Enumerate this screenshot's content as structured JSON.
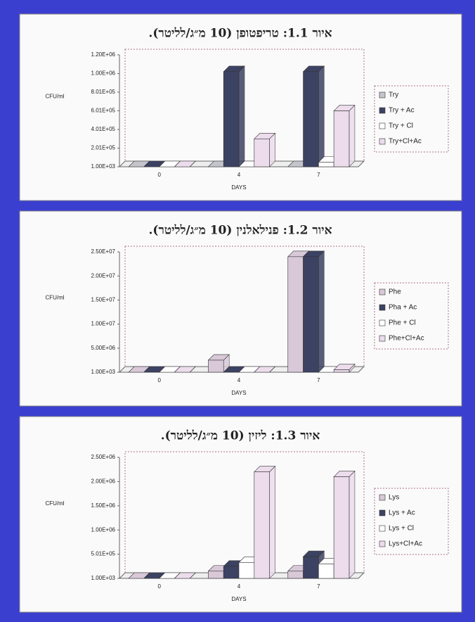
{
  "chart_data": [
    {
      "type": "bar",
      "title": "איור 1.1: טריפטופן (10 מ״ג/לליטר).",
      "y_label": "CFU/ml",
      "x_label": "DAYS",
      "categories": [
        "0",
        "4",
        "7"
      ],
      "ylim": [
        1000,
        1200000
      ],
      "yticks": [
        {
          "value": 1000,
          "label": "1.00E+03"
        },
        {
          "value": 201000,
          "label": "2.01E+05"
        },
        {
          "value": 401000,
          "label": "4.01E+05"
        },
        {
          "value": 601000,
          "label": "6.01E+05"
        },
        {
          "value": 801000,
          "label": "8.01E+05"
        },
        {
          "value": 1000000,
          "label": "1.00E+06"
        },
        {
          "value": 1200000,
          "label": "1.20E+06"
        }
      ],
      "series": [
        {
          "name": "Try",
          "color": "#c4c4cc",
          "values": [
            1000,
            1000,
            1000
          ]
        },
        {
          "name": "Try + Ac",
          "color": "#3c4262",
          "values": [
            1000,
            1020000,
            1020000
          ]
        },
        {
          "name": "Try + Cl",
          "color": "#ffffff",
          "values": [
            1000,
            1000,
            50000
          ]
        },
        {
          "name": "Try+Cl+Ac",
          "color": "#ecdcec",
          "values": [
            1000,
            300000,
            600000
          ]
        }
      ]
    },
    {
      "type": "bar",
      "title": "איור 1.2: פנילאלנין (10 מ״ג/לליטר).",
      "y_label": "CFU/ml",
      "x_label": "DAYS",
      "categories": [
        "0",
        "4",
        "7"
      ],
      "ylim": [
        1000,
        25000000
      ],
      "yticks": [
        {
          "value": 1000,
          "label": "1.00E+03"
        },
        {
          "value": 5000000,
          "label": "5.00E+06"
        },
        {
          "value": 10000000,
          "label": "1.00E+07"
        },
        {
          "value": 15000000,
          "label": "1.50E+07"
        },
        {
          "value": 20000000,
          "label": "2.00E+07"
        },
        {
          "value": 25000000,
          "label": "2.50E+07"
        }
      ],
      "series": [
        {
          "name": "Phe",
          "color": "#d8c8d8",
          "values": [
            1000,
            2500000,
            24000000
          ]
        },
        {
          "name": "Pha + Ac",
          "color": "#3c4262",
          "values": [
            1000,
            1000,
            24000000
          ]
        },
        {
          "name": "Phe + Cl",
          "color": "#ffffff",
          "values": [
            1000,
            1000,
            1000
          ]
        },
        {
          "name": "Phe+Cl+Ac",
          "color": "#ecdcec",
          "values": [
            1000,
            1000,
            500000
          ]
        }
      ]
    },
    {
      "type": "bar",
      "title": "איור 1.3: ליזין (10 מ״ג/לליטר).",
      "y_label": "CFU/ml",
      "x_label": "DAYS",
      "categories": [
        "0",
        "4",
        "7"
      ],
      "ylim": [
        1000,
        2500000
      ],
      "yticks": [
        {
          "value": 1000,
          "label": "1.00E+03"
        },
        {
          "value": 501000,
          "label": "5.01E+05"
        },
        {
          "value": 1000000,
          "label": "1.00E+06"
        },
        {
          "value": 1500000,
          "label": "1.50E+06"
        },
        {
          "value": 2000000,
          "label": "2.00E+06"
        },
        {
          "value": 2500000,
          "label": "2.50E+06"
        }
      ],
      "series": [
        {
          "name": "Lys",
          "color": "#d8c8d8",
          "values": [
            1000,
            150000,
            150000
          ]
        },
        {
          "name": "Lys + Ac",
          "color": "#3c4262",
          "values": [
            1000,
            250000,
            450000
          ]
        },
        {
          "name": "Lys + Cl",
          "color": "#ffffff",
          "values": [
            1000,
            330000,
            300000
          ]
        },
        {
          "name": "Lys+Cl+Ac",
          "color": "#ecdcec",
          "values": [
            1000,
            2200000,
            2100000
          ]
        }
      ]
    }
  ]
}
